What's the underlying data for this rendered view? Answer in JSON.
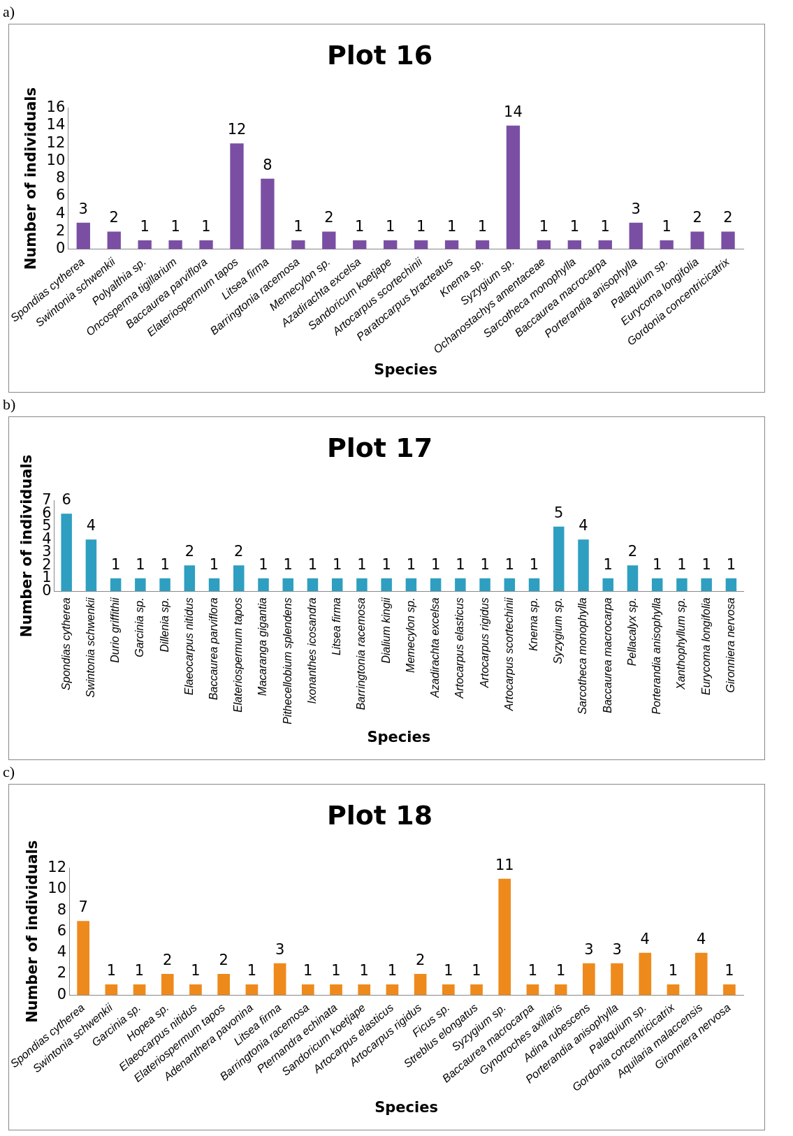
{
  "chart_data": [
    {
      "type": "bar",
      "title": "Plot 16",
      "xlabel": "Species",
      "ylabel": "Number of individuals",
      "annotations": [
        "a)"
      ],
      "color": "#7a4fa3",
      "data_labels": true,
      "grid": false,
      "legend": false,
      "ylim": [
        0,
        16
      ],
      "yticks": [
        0,
        2,
        4,
        6,
        8,
        10,
        12,
        14,
        16
      ],
      "categories": [
        "Spondias cytherea",
        "Swintonia schwenkii",
        "Polyalthia sp.",
        "Oncosperma tigillarium",
        "Baccaurea parviflora",
        "Elateriospermum tapos",
        "Litsea firma",
        "Barringtonia racemosa",
        "Memecylon sp.",
        "Azadirachta excelsa",
        "Sandoricum koetjape",
        "Artocarpus scortechinii",
        "Paratocarpus bracteatus",
        "Knema sp.",
        "Syzygium sp.",
        "Ochanostachys amentaceae",
        "Sarcotheca monophylla",
        "Baccaurea macrocarpa",
        "Porterandia anisophylla",
        "Palaquium sp.",
        "Eurycoma longifolia",
        "Gordonia concentricicatrix"
      ],
      "values": [
        3,
        2,
        1,
        1,
        1,
        12,
        8,
        1,
        2,
        1,
        1,
        1,
        1,
        1,
        14,
        1,
        1,
        1,
        3,
        1,
        2,
        2
      ]
    },
    {
      "type": "bar",
      "title": "Plot 17",
      "xlabel": "Species",
      "ylabel": "Number of individuals",
      "annotations": [
        "b)"
      ],
      "color": "#2e9fc0",
      "data_labels": true,
      "grid": false,
      "legend": false,
      "ylim": [
        0,
        7
      ],
      "yticks": [
        0,
        1,
        2,
        3,
        4,
        5,
        6,
        7
      ],
      "categories": [
        "Spondias cytherea",
        "Swintonia schwenkii",
        "Durio griffithii",
        "Garcinia sp.",
        "Dillenia sp.",
        "Elaeocarpus nitidus",
        "Baccaurea parviflora",
        "Elateriospermum tapos",
        "Macaranga gigantia",
        "Pithecellobium splendens",
        "Ixonanthes icosandra",
        "Litsea firma",
        "Barringtonia racemosa",
        "Dialium kingii",
        "Memecylon sp.",
        "Azadirachta excelsa",
        "Artocarpus elasticus",
        "Artocarpus rigidus",
        "Artocarpus scortechinii",
        "Knema sp.",
        "Syzygium sp.",
        "Sarcotheca monophylla",
        "Baccaurea macrocarpa",
        "Pellacalyx sp.",
        "Porterandia anisophylla",
        "Xanthophyllum sp.",
        "Eurycoma longifolia",
        "Gironniera nervosa"
      ],
      "values": [
        6,
        4,
        1,
        1,
        1,
        2,
        1,
        2,
        1,
        1,
        1,
        1,
        1,
        1,
        1,
        1,
        1,
        1,
        1,
        1,
        5,
        4,
        1,
        2,
        1,
        1,
        1,
        1
      ]
    },
    {
      "type": "bar",
      "title": "Plot 18",
      "xlabel": "Species",
      "ylabel": "Number of individuals",
      "annotations": [
        "c)"
      ],
      "color": "#ee8a1c",
      "data_labels": true,
      "grid": false,
      "legend": false,
      "ylim": [
        0,
        12
      ],
      "yticks": [
        0,
        2,
        4,
        6,
        8,
        10,
        12
      ],
      "categories": [
        "Spondias cytherea",
        "Swintonia schwenkii",
        "Garcinia sp.",
        "Hopea sp.",
        "Elaeocarpus nitidus",
        "Elateriospermum tapos",
        "Adenanthera pavonina",
        "Litsea firma",
        "Barringtonia racemosa",
        "Pternandra echinata",
        "Sandoricum koetjape",
        "Artocarpus elasticus",
        "Artocarpus rigidus",
        "Ficus sp.",
        "Streblus elongatus",
        "Syzygium sp.",
        "Baccaurea macrocarpa",
        "Gynotroches axillaris",
        "Adina rubescens",
        "Porterandia anisophylla",
        "Palaquium sp.",
        "Gordonia concentricicatrix",
        "Aquilaria malaccensis",
        "Gironniera nervosa"
      ],
      "values": [
        7,
        1,
        1,
        2,
        1,
        2,
        1,
        3,
        1,
        1,
        1,
        1,
        2,
        1,
        1,
        11,
        1,
        1,
        3,
        3,
        4,
        1,
        4,
        1
      ]
    }
  ]
}
